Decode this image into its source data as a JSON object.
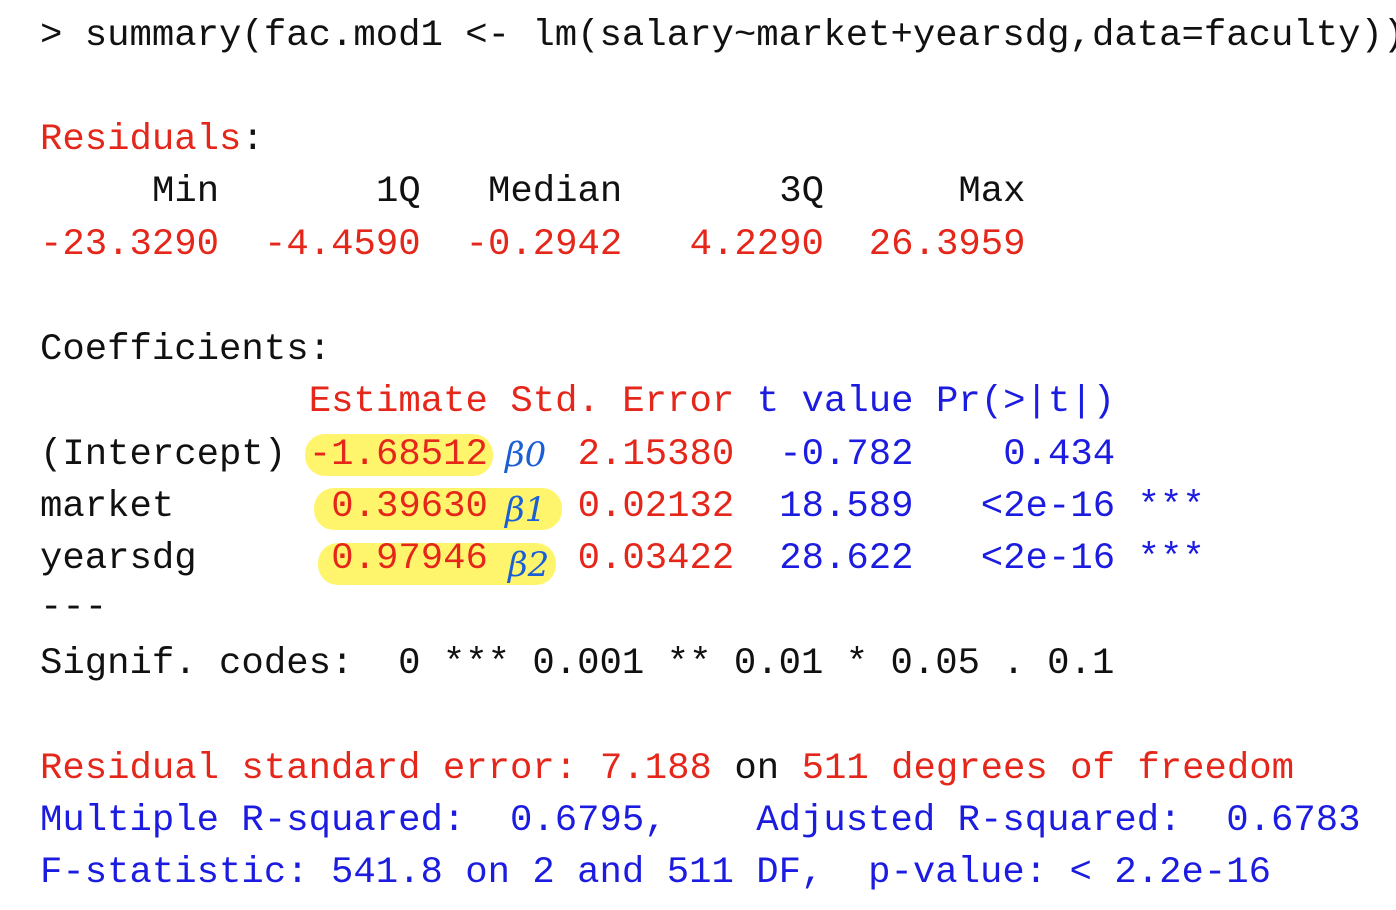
{
  "command": "> summary(fac.mod1 <- lm(salary~market+yearsdg,data=faculty))",
  "residuals": {
    "label": "Residuals",
    "suffix": ":",
    "headers": [
      "Min",
      "1Q",
      "Median",
      "3Q",
      "Max"
    ],
    "values": [
      "-23.3290",
      "-4.4590",
      "-0.2942",
      "4.2290",
      "26.3959"
    ]
  },
  "coefficients": {
    "label": "Coefficients:",
    "headers": [
      "Estimate",
      "Std. Error",
      "t value",
      "Pr(>|t|)"
    ],
    "rows": [
      [
        "(Intercept)",
        "-1.68512",
        "2.15380",
        "-0.782",
        "0.434",
        null
      ],
      [
        "market",
        "0.39630",
        "0.02132",
        "18.589",
        "<2e-16",
        "***"
      ],
      [
        "yearsdg",
        "0.97946",
        "0.03422",
        "28.622",
        "<2e-16",
        "***"
      ]
    ],
    "annotations": [
      "β0",
      "β1",
      "β2"
    ]
  },
  "separator": "---",
  "signif_codes": "Signif. codes:  0 *** 0.001 ** 0.01 * 0.05 . 0.1",
  "residual_se": {
    "label": "Residual standard error:",
    "value": "7.188",
    "on": "on",
    "df": "511 degrees of freedom"
  },
  "r_squared": "Multiple R-squared:  0.6795,    Adjusted R-squared:  0.6783",
  "f_statistic": "F-statistic: 541.8 on 2 and 511 DF,  p-value: < 2.2e-16"
}
